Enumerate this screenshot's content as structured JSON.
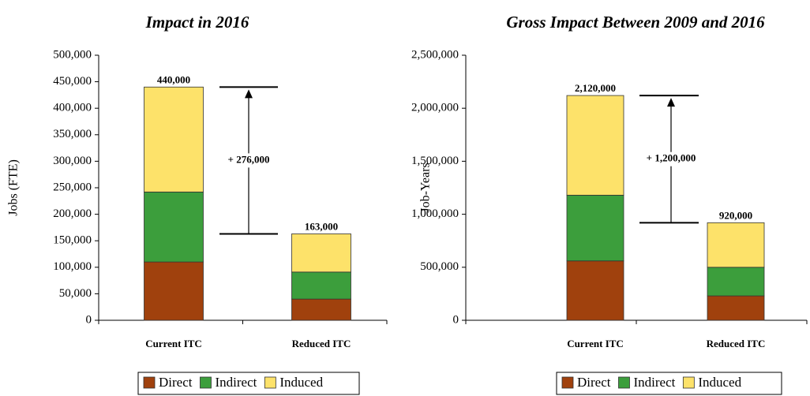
{
  "chart_data": [
    {
      "type": "stacked_bar",
      "title": "Impact in 2016",
      "y_label": "Jobs (FTE)",
      "categories": [
        "Current ITC",
        "Reduced ITC"
      ],
      "series": [
        {
          "name": "Direct",
          "color": "#a0410d",
          "values": [
            110000,
            40000
          ]
        },
        {
          "name": "Indirect",
          "color": "#3c9e3c",
          "values": [
            132000,
            51000
          ]
        },
        {
          "name": "Induced",
          "color": "#fde26a",
          "values": [
            198000,
            72000
          ]
        }
      ],
      "totals": [
        440000,
        163000
      ],
      "total_labels": [
        "440,000",
        "163,000"
      ],
      "annotation": "+ 276,000",
      "ylim": [
        0,
        500000
      ],
      "yticks": [
        0,
        {
          "value": 50000,
          "label": "50,000"
        },
        {
          "value": 100000,
          "label": "100,000"
        },
        {
          "value": 150000,
          "label": "150,000"
        },
        {
          "value": 200000,
          "label": "200,000"
        },
        {
          "value": 250000,
          "label": "250,000"
        },
        {
          "value": 300000,
          "label": "300,000"
        },
        {
          "value": 350000,
          "label": "350,000"
        },
        {
          "value": 400000,
          "label": "400,000"
        },
        {
          "value": 450000,
          "label": "450,000"
        },
        {
          "value": 500000,
          "label": "500,000"
        }
      ],
      "legend": "bottom"
    },
    {
      "type": "stacked_bar",
      "title": "Gross Impact Between 2009 and 2016",
      "y_label": "Job-Years",
      "categories": [
        "Current ITC",
        "Reduced ITC"
      ],
      "series": [
        {
          "name": "Direct",
          "color": "#a0410d",
          "values": [
            560000,
            230000
          ]
        },
        {
          "name": "Indirect",
          "color": "#3c9e3c",
          "values": [
            620000,
            270000
          ]
        },
        {
          "name": "Induced",
          "color": "#fde26a",
          "values": [
            940000,
            420000
          ]
        }
      ],
      "totals": [
        2120000,
        920000
      ],
      "total_labels": [
        "2,120,000",
        "920,000"
      ],
      "annotation": "+ 1,200,000",
      "ylim": [
        0,
        2500000
      ],
      "yticks": [
        0,
        {
          "value": 500000,
          "label": "500,000"
        },
        {
          "value": 1000000,
          "label": "1,000,000"
        },
        {
          "value": 1500000,
          "label": "1,500,000"
        },
        {
          "value": 2000000,
          "label": "2,000,000"
        },
        {
          "value": 2500000,
          "label": "2,500,000"
        }
      ],
      "legend": "bottom"
    }
  ]
}
